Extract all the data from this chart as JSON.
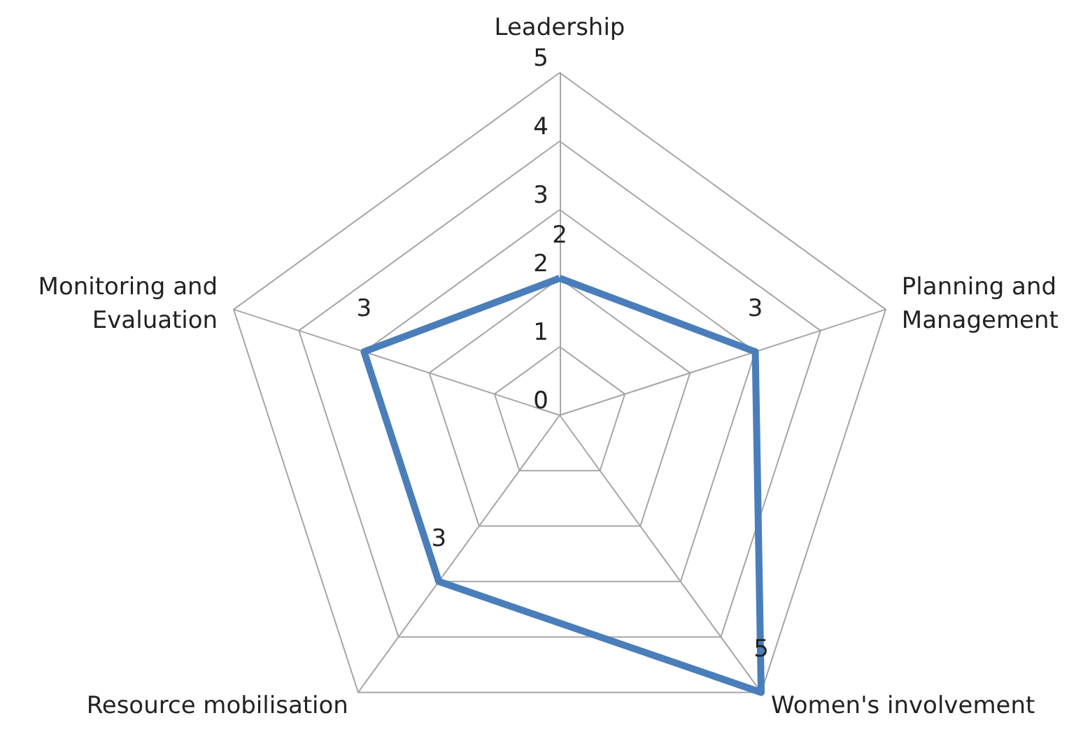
{
  "chart_data": {
    "type": "radar",
    "categories": [
      "Leadership",
      "Planning and\nManagement",
      "Women's involvement",
      "Resource mobilisation",
      "Monitoring and\nEvaluation"
    ],
    "series": [
      {
        "color": "#4a7ebb",
        "values": [
          2,
          3,
          5,
          3,
          3
        ]
      }
    ],
    "ylim": [
      0,
      5
    ],
    "yticks": [
      0,
      1,
      2,
      3,
      4,
      5
    ],
    "data_labels": true,
    "marker": "none",
    "line_style": "solid",
    "grid": true
  }
}
